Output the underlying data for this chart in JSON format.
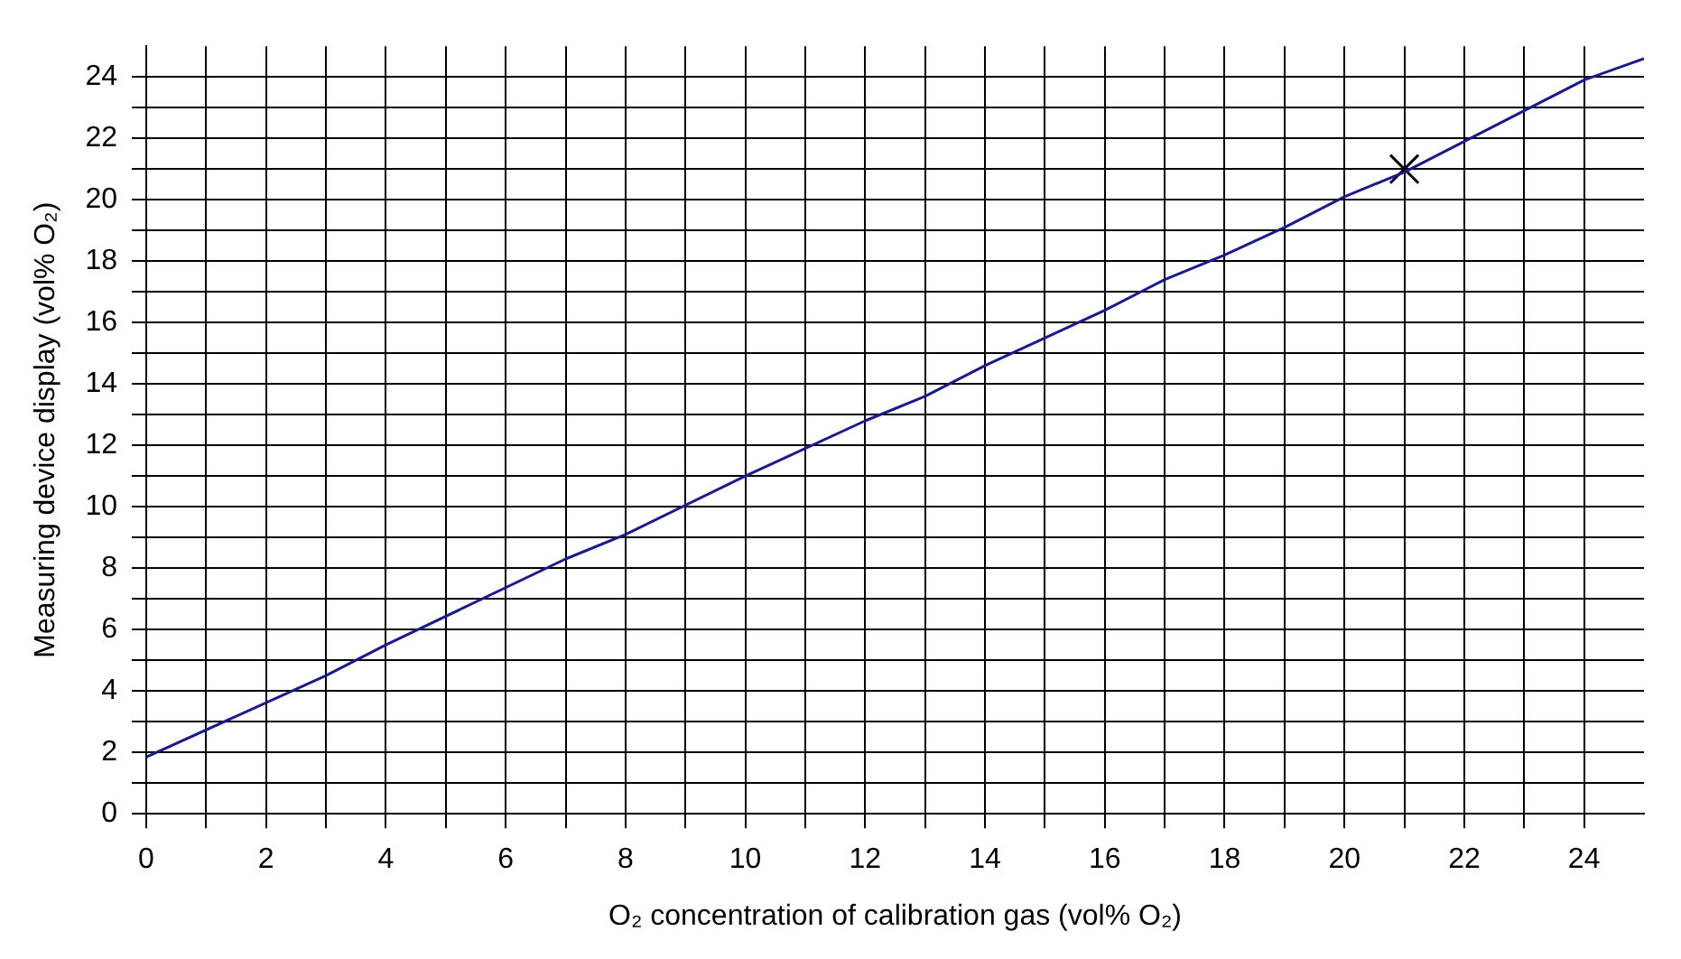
{
  "chart_data": {
    "type": "line",
    "xlabel": "O₂ concentration of calibration gas (vol% O₂)",
    "ylabel": "Measuring device display (vol% O₂)",
    "xlim": [
      0,
      25
    ],
    "ylim": [
      0,
      25
    ],
    "xticks": [
      0,
      {
        "value": 1,
        "label": null
      },
      2,
      {
        "value": 3,
        "label": null
      },
      4,
      {
        "value": 5,
        "label": null
      },
      6,
      {
        "value": 7,
        "label": null
      },
      8,
      {
        "value": 9,
        "label": null
      },
      10,
      {
        "value": 11,
        "label": null
      },
      12,
      {
        "value": 13,
        "label": null
      },
      14,
      {
        "value": 15,
        "label": null
      },
      16,
      {
        "value": 17,
        "label": null
      },
      18,
      {
        "value": 19,
        "label": null
      },
      20,
      {
        "value": 21,
        "label": null
      },
      22,
      {
        "value": 23,
        "label": null
      },
      24
    ],
    "yticks": [
      0,
      {
        "value": 1,
        "label": null
      },
      2,
      {
        "value": 3,
        "label": null
      },
      4,
      {
        "value": 5,
        "label": null
      },
      6,
      {
        "value": 7,
        "label": null
      },
      8,
      {
        "value": 9,
        "label": null
      },
      10,
      {
        "value": 11,
        "label": null
      },
      12,
      {
        "value": 13,
        "label": null
      },
      14,
      {
        "value": 15,
        "label": null
      },
      16,
      {
        "value": 17,
        "label": null
      },
      18,
      {
        "value": 19,
        "label": null
      },
      20,
      {
        "value": 21,
        "label": null
      },
      22,
      {
        "value": 23,
        "label": null
      },
      24
    ],
    "grid": true,
    "legend": false,
    "marker": "none",
    "line_style": "solid",
    "series": [
      {
        "type": "line",
        "color": "#1a1a8c",
        "x": [
          0,
          3,
          4,
          7,
          8,
          10,
          12,
          13,
          14,
          16,
          17,
          18,
          19,
          20,
          21,
          24,
          25
        ],
        "values": [
          1.85,
          4.5,
          5.5,
          8.3,
          9.1,
          11,
          12.8,
          13.6,
          14.6,
          16.4,
          17.4,
          18.2,
          19.1,
          20.1,
          20.9,
          23.9,
          24.6
        ]
      },
      {
        "type": "scatter",
        "color": "#000000",
        "marker": "cross",
        "x": [
          21
        ],
        "values": [
          21
        ]
      }
    ]
  }
}
